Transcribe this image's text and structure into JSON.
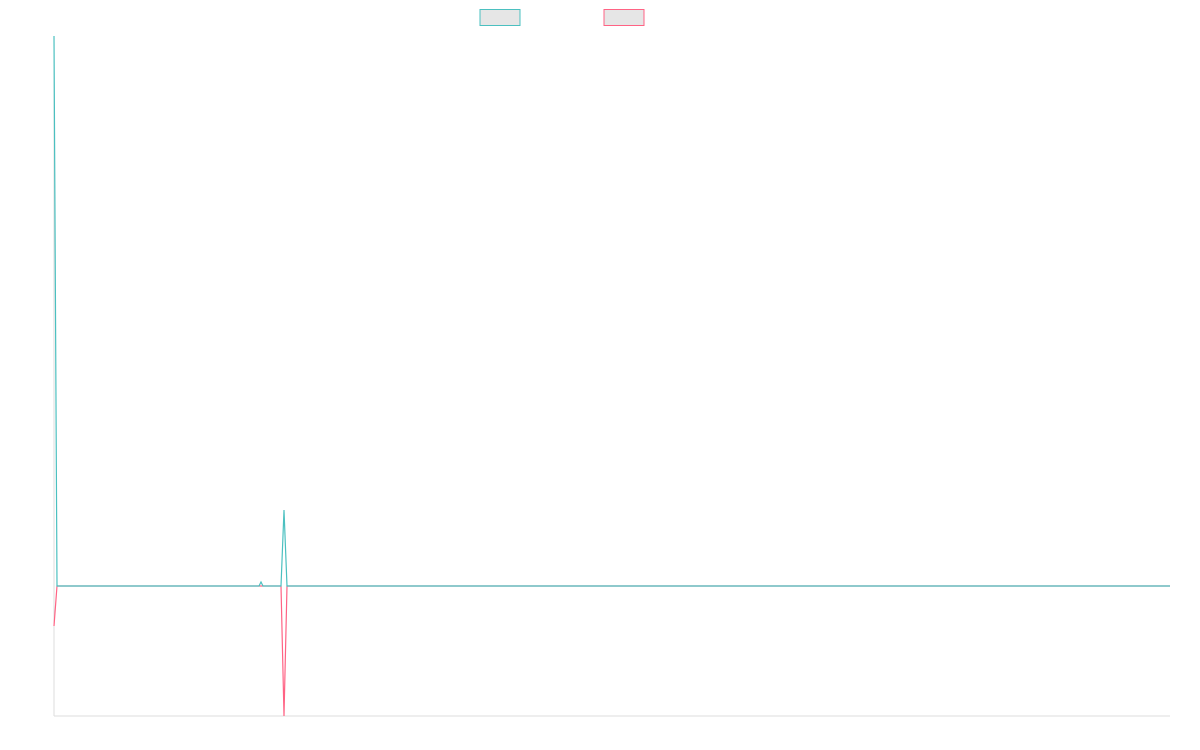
{
  "chart_data": {
    "type": "line",
    "x": [
      0,
      3,
      205,
      207,
      209,
      227,
      230,
      233,
      1116
    ],
    "series": [
      {
        "color": "#4bc0c0",
        "values": [
          550,
          0,
          0,
          4,
          0,
          0,
          76,
          0,
          0
        ]
      },
      {
        "color": "#ff6384",
        "values": [
          -40,
          0,
          0,
          0,
          0,
          0,
          -130,
          0,
          0
        ]
      }
    ],
    "xlim": [
      0,
      1116
    ],
    "ylim": [
      -130,
      550
    ],
    "grid": false,
    "legend": "top"
  }
}
